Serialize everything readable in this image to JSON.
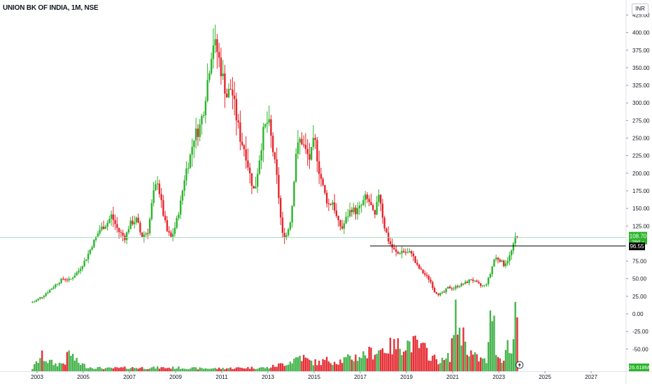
{
  "header": {
    "title": "UNION BK OF INDIA, 1M, NSE",
    "currency": "INR"
  },
  "price_axis": {
    "ticks": [
      {
        "value": 425,
        "label": "425.00"
      },
      {
        "value": 400,
        "label": "400.00"
      },
      {
        "value": 375,
        "label": "375.00"
      },
      {
        "value": 350,
        "label": "350.00"
      },
      {
        "value": 325,
        "label": "325.00"
      },
      {
        "value": 300,
        "label": "300.00"
      },
      {
        "value": 275,
        "label": "275.00"
      },
      {
        "value": 250,
        "label": "250.00"
      },
      {
        "value": 225,
        "label": "225.00"
      },
      {
        "value": 200,
        "label": "200.00"
      },
      {
        "value": 175,
        "label": "175.00"
      },
      {
        "value": 150,
        "label": "150.00"
      },
      {
        "value": 125,
        "label": "125.00"
      },
      {
        "value": 75,
        "label": "75.00"
      },
      {
        "value": 50,
        "label": "50.00"
      },
      {
        "value": 25,
        "label": "25.00"
      },
      {
        "value": 0,
        "label": "0.00"
      },
      {
        "value": -25,
        "label": "-25.00"
      },
      {
        "value": -50,
        "label": "-50.00"
      }
    ]
  },
  "time_axis": {
    "ticks": [
      "2003",
      "2005",
      "2007",
      "2009",
      "2011",
      "2013",
      "2015",
      "2017",
      "2019",
      "2021",
      "2023",
      "2025",
      "2027"
    ]
  },
  "badges": {
    "last_price": "108.70",
    "countdown": "28d",
    "level": "96.55",
    "volume": "26.618M"
  },
  "colors": {
    "up": "#089981",
    "up_bright": "#2bb52b",
    "down": "#f23645",
    "down_bright": "#e5242b",
    "line": "#000000",
    "last_price_line": "#22ab94"
  },
  "chart_data": {
    "type": "candlestick",
    "title": "UNION BK OF INDIA, 1M, NSE",
    "x_range": [
      2002.5,
      2028.0
    ],
    "y_range": [
      -60,
      430
    ],
    "horizontal_line": 96.55,
    "last_price": 108.7,
    "price_path": [
      [
        2002.8,
        16
      ],
      [
        2003.0,
        18
      ],
      [
        2003.3,
        25
      ],
      [
        2003.6,
        33
      ],
      [
        2003.9,
        42
      ],
      [
        2004.2,
        50
      ],
      [
        2004.5,
        48
      ],
      [
        2004.9,
        62
      ],
      [
        2005.2,
        78
      ],
      [
        2005.5,
        100
      ],
      [
        2005.8,
        120
      ],
      [
        2006.1,
        128
      ],
      [
        2006.3,
        140
      ],
      [
        2006.6,
        118
      ],
      [
        2006.9,
        108
      ],
      [
        2007.1,
        128
      ],
      [
        2007.4,
        134
      ],
      [
        2007.6,
        110
      ],
      [
        2007.9,
        118
      ],
      [
        2008.1,
        168
      ],
      [
        2008.3,
        190
      ],
      [
        2008.5,
        150
      ],
      [
        2008.7,
        118
      ],
      [
        2008.9,
        108
      ],
      [
        2009.1,
        128
      ],
      [
        2009.3,
        158
      ],
      [
        2009.5,
        200
      ],
      [
        2009.7,
        222
      ],
      [
        2009.9,
        255
      ],
      [
        2010.1,
        262
      ],
      [
        2010.3,
        292
      ],
      [
        2010.5,
        340
      ],
      [
        2010.7,
        388
      ],
      [
        2010.9,
        372
      ],
      [
        2011.1,
        340
      ],
      [
        2011.3,
        310
      ],
      [
        2011.5,
        322
      ],
      [
        2011.7,
        282
      ],
      [
        2011.9,
        248
      ],
      [
        2012.1,
        232
      ],
      [
        2012.3,
        198
      ],
      [
        2012.5,
        172
      ],
      [
        2012.7,
        218
      ],
      [
        2012.9,
        262
      ],
      [
        2013.1,
        275
      ],
      [
        2013.3,
        232
      ],
      [
        2013.5,
        185
      ],
      [
        2013.7,
        112
      ],
      [
        2013.9,
        112
      ],
      [
        2014.1,
        140
      ],
      [
        2014.3,
        230
      ],
      [
        2014.5,
        250
      ],
      [
        2014.7,
        232
      ],
      [
        2014.9,
        220
      ],
      [
        2015.1,
        250
      ],
      [
        2015.3,
        205
      ],
      [
        2015.5,
        175
      ],
      [
        2015.7,
        155
      ],
      [
        2015.9,
        160
      ],
      [
        2016.1,
        130
      ],
      [
        2016.3,
        122
      ],
      [
        2016.5,
        138
      ],
      [
        2016.7,
        150
      ],
      [
        2016.9,
        145
      ],
      [
        2017.1,
        152
      ],
      [
        2017.3,
        165
      ],
      [
        2017.5,
        158
      ],
      [
        2017.7,
        135
      ],
      [
        2017.9,
        175
      ],
      [
        2018.1,
        128
      ],
      [
        2018.3,
        105
      ],
      [
        2018.5,
        92
      ],
      [
        2018.7,
        85
      ],
      [
        2018.9,
        90
      ],
      [
        2019.1,
        86
      ],
      [
        2019.3,
        88
      ],
      [
        2019.5,
        70
      ],
      [
        2019.7,
        62
      ],
      [
        2019.9,
        55
      ],
      [
        2020.1,
        48
      ],
      [
        2020.3,
        32
      ],
      [
        2020.5,
        28
      ],
      [
        2020.7,
        30
      ],
      [
        2020.9,
        38
      ],
      [
        2021.1,
        36
      ],
      [
        2021.3,
        40
      ],
      [
        2021.5,
        42
      ],
      [
        2021.7,
        45
      ],
      [
        2021.9,
        50
      ],
      [
        2022.1,
        44
      ],
      [
        2022.3,
        40
      ],
      [
        2022.5,
        40
      ],
      [
        2022.7,
        55
      ],
      [
        2022.9,
        80
      ],
      [
        2023.1,
        78
      ],
      [
        2023.3,
        70
      ],
      [
        2023.5,
        78
      ],
      [
        2023.7,
        95
      ],
      [
        2023.8,
        108.7
      ]
    ],
    "volume_path": [
      [
        2002.8,
        4
      ],
      [
        2003.2,
        22
      ],
      [
        2003.5,
        14
      ],
      [
        2003.8,
        10
      ],
      [
        2004.2,
        12
      ],
      [
        2004.4,
        28
      ],
      [
        2004.7,
        14
      ],
      [
        2005.2,
        6
      ],
      [
        2006.0,
        4
      ],
      [
        2007.0,
        5
      ],
      [
        2008.0,
        5
      ],
      [
        2009.0,
        5
      ],
      [
        2010.0,
        4
      ],
      [
        2011.0,
        4
      ],
      [
        2012.0,
        5
      ],
      [
        2013.0,
        5
      ],
      [
        2013.6,
        10
      ],
      [
        2014.0,
        14
      ],
      [
        2014.4,
        22
      ],
      [
        2014.8,
        14
      ],
      [
        2015.2,
        12
      ],
      [
        2015.6,
        16
      ],
      [
        2016.0,
        14
      ],
      [
        2016.5,
        18
      ],
      [
        2017.0,
        22
      ],
      [
        2017.4,
        26
      ],
      [
        2017.8,
        30
      ],
      [
        2018.2,
        34
      ],
      [
        2018.6,
        36
      ],
      [
        2019.0,
        40
      ],
      [
        2019.4,
        38
      ],
      [
        2019.8,
        30
      ],
      [
        2020.2,
        18
      ],
      [
        2020.6,
        14
      ],
      [
        2020.9,
        22
      ],
      [
        2021.1,
        78
      ],
      [
        2021.3,
        60
      ],
      [
        2021.5,
        48
      ],
      [
        2021.7,
        30
      ],
      [
        2021.9,
        22
      ],
      [
        2022.1,
        18
      ],
      [
        2022.3,
        16
      ],
      [
        2022.5,
        14
      ],
      [
        2022.7,
        96
      ],
      [
        2022.9,
        30
      ],
      [
        2023.1,
        14
      ],
      [
        2023.4,
        38
      ],
      [
        2023.6,
        22
      ],
      [
        2023.75,
        120
      ]
    ]
  }
}
